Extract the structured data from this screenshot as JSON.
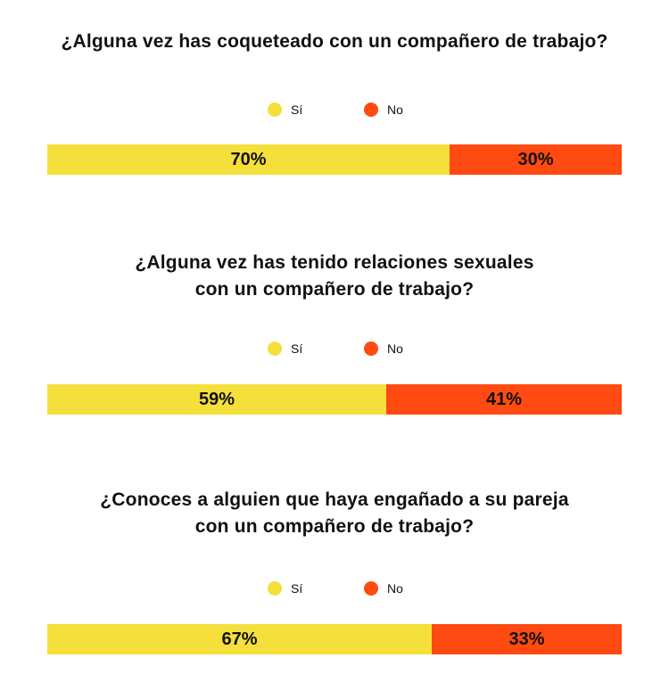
{
  "colors": {
    "yes": "#F5DF3B",
    "no": "#FF4A12"
  },
  "legend": {
    "yes_label": "Sí",
    "no_label": "No"
  },
  "chart_data": [
    {
      "type": "bar",
      "title": "¿Alguna vez has coqueteado con un compañero de trabajo?",
      "title_lines": [
        "¿Alguna vez has coqueteado con un compañero de trabajo?"
      ],
      "categories": [
        "Sí",
        "No"
      ],
      "values": [
        70,
        30
      ],
      "labels": [
        "70%",
        "30%"
      ]
    },
    {
      "type": "bar",
      "title": "¿Alguna vez has tenido relaciones sexuales con un compañero de trabajo?",
      "title_lines": [
        "¿Alguna vez has tenido relaciones sexuales",
        "con un compañero de trabajo?"
      ],
      "categories": [
        "Sí",
        "No"
      ],
      "values": [
        59,
        41
      ],
      "labels": [
        "59%",
        "41%"
      ]
    },
    {
      "type": "bar",
      "title": "¿Conoces a alguien que haya engañado a su pareja con un compañero de trabajo?",
      "title_lines": [
        "¿Conoces a alguien que haya engañado a su pareja",
        "con un compañero de trabajo?"
      ],
      "categories": [
        "Sí",
        "No"
      ],
      "values": [
        67,
        33
      ],
      "labels": [
        "67%",
        "33%"
      ]
    }
  ]
}
